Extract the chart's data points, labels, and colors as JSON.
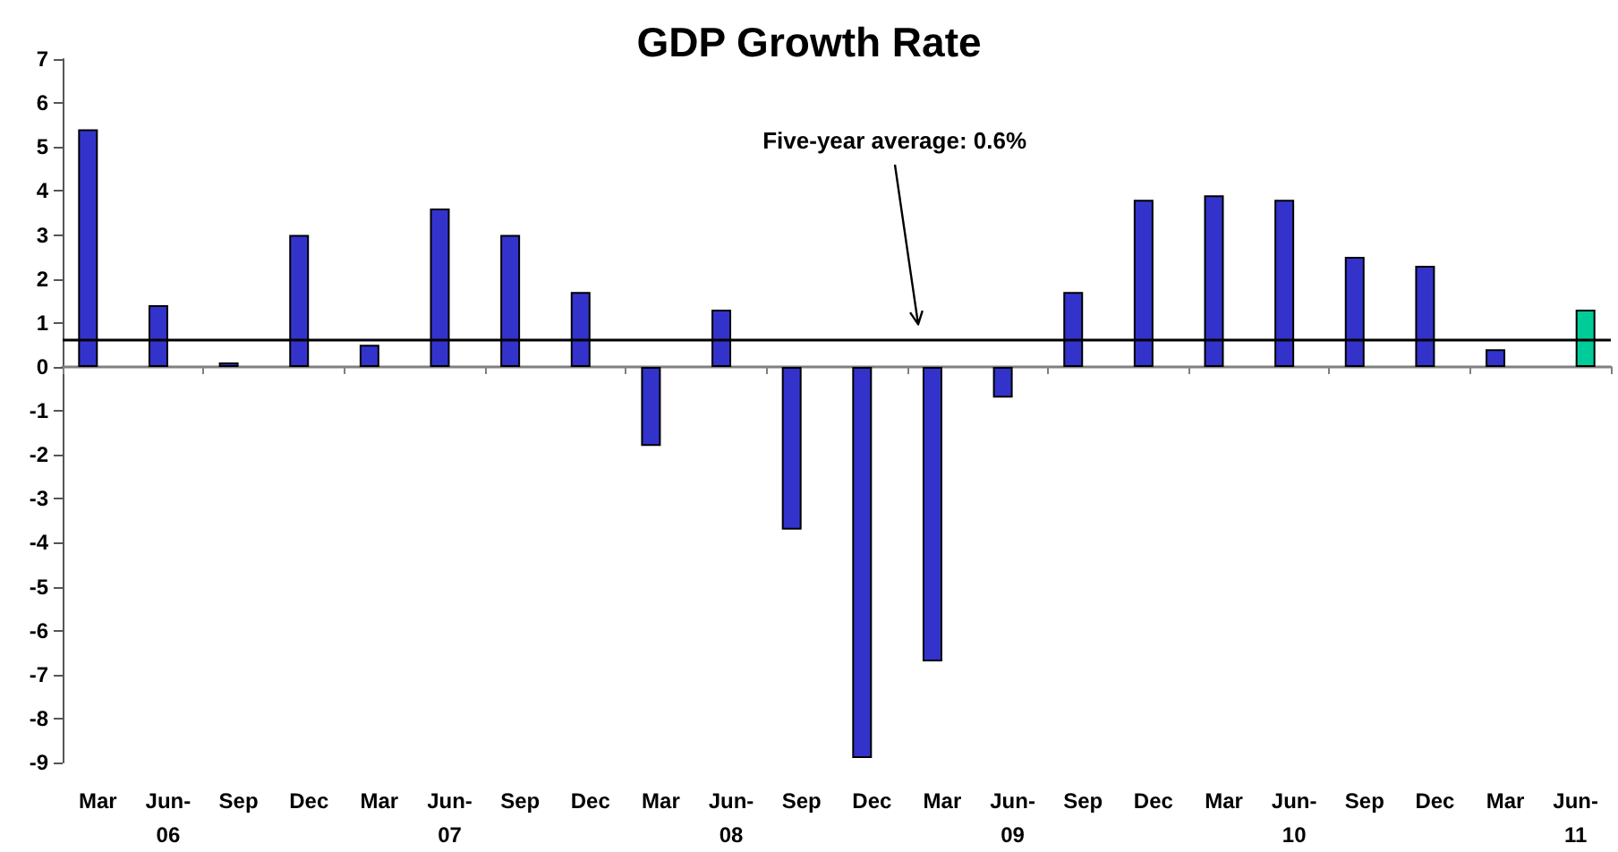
{
  "chart_data": {
    "type": "bar",
    "title": "GDP Growth Rate",
    "categories": [
      "Mar",
      "Jun-06",
      "Sep",
      "Dec",
      "Mar",
      "Jun-07",
      "Sep",
      "Dec",
      "Mar",
      "Jun-08",
      "Sep",
      "Dec",
      "Mar",
      "Jun-09",
      "Sep",
      "Dec",
      "Mar",
      "Jun-10",
      "Sep",
      "Dec",
      "Mar",
      "Jun-11"
    ],
    "series": [
      {
        "color": "#3333cc",
        "values": [
          5.4,
          1.4,
          0.1,
          3.0,
          0.5,
          3.6,
          3.0,
          1.7,
          -1.8,
          1.3,
          -3.7,
          -8.9,
          -6.7,
          -0.7,
          1.7,
          3.8,
          3.9,
          3.8,
          2.5,
          2.3,
          0.4,
          null
        ]
      },
      {
        "color": "#00cc99",
        "values": [
          null,
          null,
          null,
          null,
          null,
          null,
          null,
          null,
          null,
          null,
          null,
          null,
          null,
          null,
          null,
          null,
          null,
          null,
          null,
          null,
          null,
          1.3
        ]
      }
    ],
    "ylim": [
      -9,
      7
    ],
    "yticks": [
      -9,
      -8,
      -7,
      -6,
      -5,
      -4,
      -3,
      -2,
      -1,
      0,
      1,
      2,
      3,
      4,
      5,
      6,
      7
    ],
    "ref_lines": [
      {
        "axis": "y",
        "value": 0.6,
        "label": "Five-year average: 0.6%"
      }
    ]
  }
}
